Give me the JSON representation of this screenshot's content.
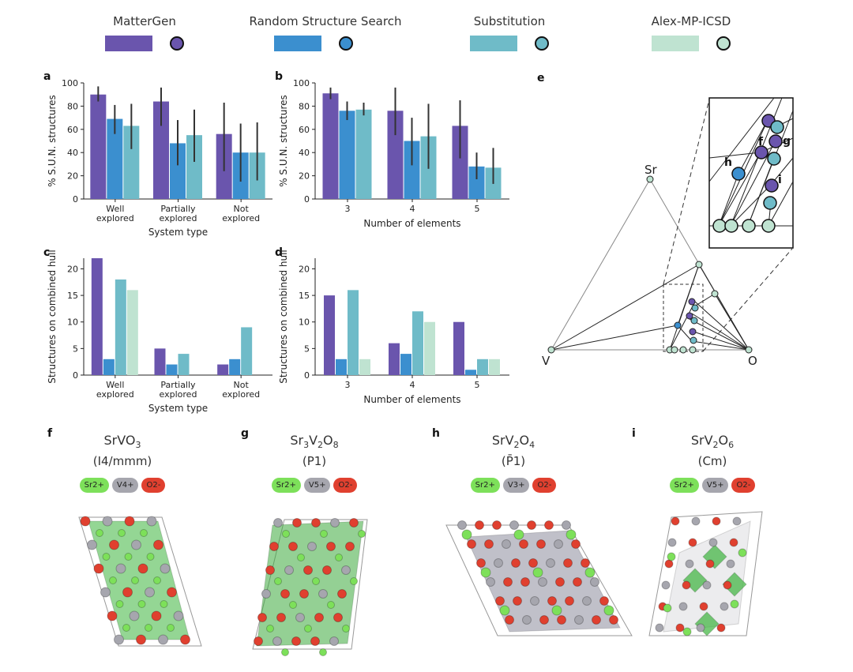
{
  "legend": [
    {
      "label": "MatterGen",
      "color": "#6a55ad"
    },
    {
      "label": "Random Structure Search",
      "color": "#3b8fcf"
    },
    {
      "label": "Substitution",
      "color": "#6fbbc8"
    },
    {
      "label": "Alex-MP-ICSD",
      "color": "#bfe3d1"
    }
  ],
  "chart_data": [
    {
      "panel": "a",
      "type": "bar",
      "ylabel": "% S.U.N. structures",
      "xlabel": "System type",
      "categories": [
        "Well\nexplored",
        "Partially\nexplored",
        "Not\nexplored"
      ],
      "ylim": [
        0,
        100
      ],
      "yticks": [
        0,
        20,
        40,
        60,
        80,
        100
      ],
      "series": [
        {
          "name": "MatterGen",
          "values": [
            90,
            84,
            56
          ],
          "err_low": [
            84,
            63,
            24
          ],
          "err_high": [
            97,
            96,
            83
          ]
        },
        {
          "name": "Random Structure Search",
          "values": [
            69,
            48,
            40
          ],
          "err_low": [
            56,
            29,
            15
          ],
          "err_high": [
            81,
            68,
            65
          ]
        },
        {
          "name": "Substitution",
          "values": [
            63,
            55,
            40
          ],
          "err_low": [
            43,
            32,
            16
          ],
          "err_high": [
            82,
            77,
            66
          ]
        }
      ]
    },
    {
      "panel": "b",
      "type": "bar",
      "ylabel": "% S.U.N. structures",
      "xlabel": "Number of elements",
      "categories": [
        "3",
        "4",
        "5"
      ],
      "ylim": [
        0,
        100
      ],
      "yticks": [
        0,
        20,
        40,
        60,
        80,
        100
      ],
      "series": [
        {
          "name": "MatterGen",
          "values": [
            91,
            76,
            63
          ],
          "err_low": [
            86,
            55,
            35
          ],
          "err_high": [
            96,
            96,
            85
          ]
        },
        {
          "name": "Random Structure Search",
          "values": [
            76,
            50,
            28
          ],
          "err_low": [
            68,
            29,
            17
          ],
          "err_high": [
            84,
            70,
            40
          ]
        },
        {
          "name": "Substitution",
          "values": [
            77,
            54,
            27
          ],
          "err_low": [
            72,
            26,
            13
          ],
          "err_high": [
            83,
            82,
            44
          ]
        }
      ]
    },
    {
      "panel": "c",
      "type": "bar",
      "ylabel": "Structures on combined hull",
      "xlabel": "System type",
      "categories": [
        "Well\nexplored",
        "Partially\nexplored",
        "Not\nexplored"
      ],
      "ylim": [
        0,
        22
      ],
      "yticks": [
        0,
        5,
        10,
        15,
        20
      ],
      "series": [
        {
          "name": "MatterGen",
          "values": [
            22,
            5,
            2
          ]
        },
        {
          "name": "Random Structure Search",
          "values": [
            3,
            2,
            3
          ]
        },
        {
          "name": "Substitution",
          "values": [
            18,
            4,
            9
          ]
        },
        {
          "name": "Alex-MP-ICSD",
          "values": [
            16,
            0,
            0
          ]
        }
      ]
    },
    {
      "panel": "d",
      "type": "bar",
      "ylabel": "Structures on combined hull",
      "xlabel": "Number of elements",
      "categories": [
        "3",
        "4",
        "5"
      ],
      "ylim": [
        0,
        22
      ],
      "yticks": [
        0,
        5,
        10,
        15,
        20
      ],
      "series": [
        {
          "name": "MatterGen",
          "values": [
            15,
            6,
            10
          ]
        },
        {
          "name": "Random Structure Search",
          "values": [
            3,
            4,
            1
          ]
        },
        {
          "name": "Substitution",
          "values": [
            16,
            12,
            3
          ]
        },
        {
          "name": "Alex-MP-ICSD",
          "values": [
            3,
            10,
            3
          ]
        }
      ]
    }
  ],
  "phase_diagram": {
    "panel": "e",
    "vertices": [
      "Sr",
      "V",
      "O"
    ],
    "inset_labels": [
      "f",
      "g",
      "h",
      "i"
    ]
  },
  "structures": [
    {
      "panel": "f",
      "formula_base": "SrVO",
      "formula_sub": "3",
      "space_group": "(I4/mmm)",
      "ions": [
        "Sr2+",
        "V4+",
        "O2-"
      ]
    },
    {
      "panel": "g",
      "formula_parts": [
        "Sr",
        "3",
        "V",
        "2",
        "O",
        "8"
      ],
      "space_group": "(P1)",
      "ions": [
        "Sr2+",
        "V5+",
        "O2-"
      ]
    },
    {
      "panel": "h",
      "formula_parts": [
        "SrV",
        "2",
        "O",
        "4"
      ],
      "space_group": "(P̄1)",
      "ions": [
        "Sr2+",
        "V3+",
        "O2-"
      ]
    },
    {
      "panel": "i",
      "formula_parts": [
        "SrV",
        "2",
        "O",
        "6"
      ],
      "space_group": "(Cm)",
      "ions": [
        "Sr2+",
        "V5+",
        "O2-"
      ]
    }
  ],
  "ion_colors": {
    "Sr2+": "#7de05a",
    "V": "#a6a6ae",
    "O2-": "#e0402f"
  }
}
